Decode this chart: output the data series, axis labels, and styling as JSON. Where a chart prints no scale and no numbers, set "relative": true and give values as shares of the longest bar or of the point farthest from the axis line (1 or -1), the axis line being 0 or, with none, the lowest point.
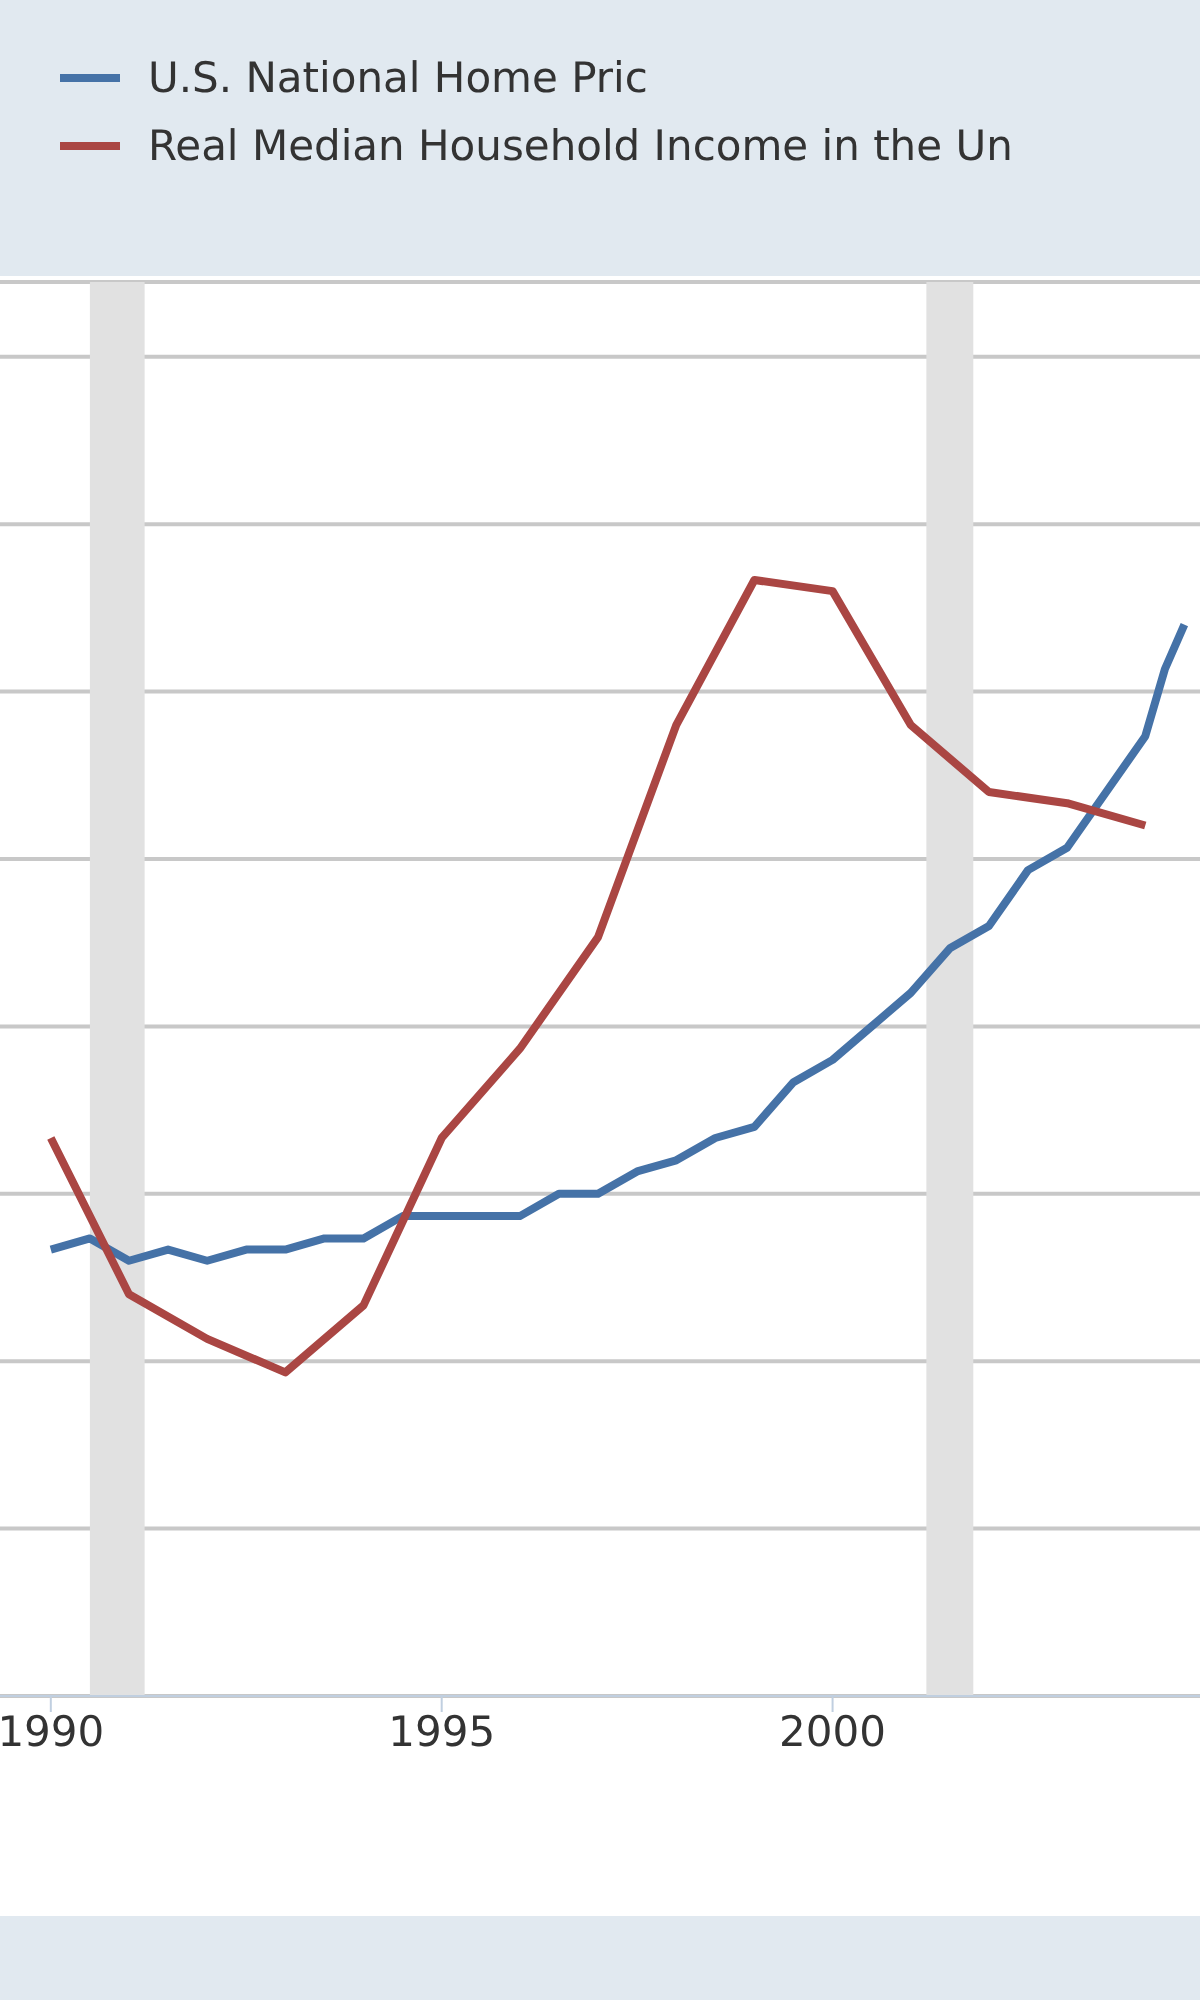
{
  "chart_data": {
    "type": "line",
    "relative": true,
    "xlim": [
      1989.35,
      2004.7
    ],
    "xticks": [
      1990,
      1995,
      2000
    ],
    "grid": "y",
    "legend": "top",
    "line_style": "solid",
    "marker": "none",
    "bands": [
      {
        "axis": "x",
        "from": 1990.5,
        "to": 1991.2,
        "color": "#e1e1e1"
      },
      {
        "axis": "x",
        "from": 2001.2,
        "to": 2001.8,
        "color": "#e1e1e1"
      }
    ],
    "series": [
      {
        "name": "U.S. National Home Pric",
        "color": "#4572a7",
        "x": [
          1990,
          1990.5,
          1991,
          1991.5,
          1992,
          1992.5,
          1993,
          1993.5,
          1994,
          1994.5,
          1995,
          1995.5,
          1996,
          1996.5,
          1997,
          1997.5,
          1998,
          1998.5,
          1999,
          1999.5,
          2000,
          2000.5,
          2001,
          2001.5,
          2002,
          2002.5,
          2003,
          2003.5,
          2004,
          2004.25,
          2004.5
        ],
        "values": [
          0.4,
          0.41,
          0.39,
          0.4,
          0.39,
          0.4,
          0.4,
          0.41,
          0.41,
          0.43,
          0.43,
          0.43,
          0.43,
          0.45,
          0.45,
          0.47,
          0.48,
          0.5,
          0.51,
          0.55,
          0.57,
          0.6,
          0.63,
          0.67,
          0.69,
          0.74,
          0.76,
          0.81,
          0.86,
          0.92,
          0.96
        ]
      },
      {
        "name": "Real Median Household Income in the Un",
        "color": "#aa4643",
        "x": [
          1990,
          1991,
          1992,
          1993,
          1994,
          1995,
          1996,
          1997,
          1998,
          1999,
          2000,
          2001,
          2002,
          2003,
          2004
        ],
        "values": [
          0.5,
          0.36,
          0.32,
          0.29,
          0.35,
          0.5,
          0.58,
          0.68,
          0.87,
          1,
          0.99,
          0.87,
          0.81,
          0.8,
          0.78
        ]
      }
    ]
  }
}
